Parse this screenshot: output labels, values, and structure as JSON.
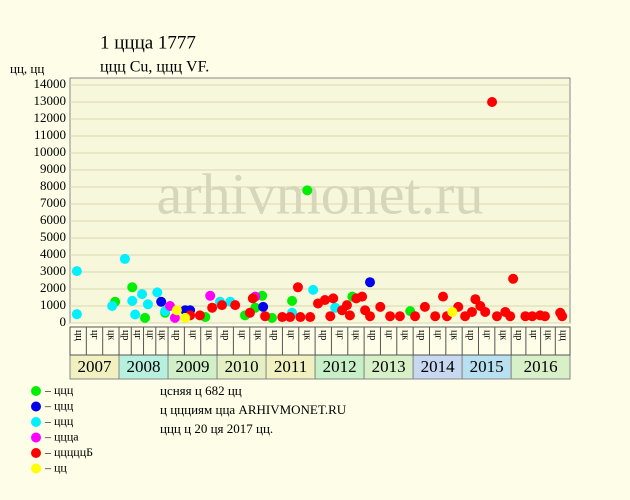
{
  "chart_data": {
    "type": "scatter",
    "title": "1 цццa 1777",
    "subtitle": "ццц Cu, ццц VF.",
    "y_label": "цц, цц",
    "watermark": "arhivmonet.ru",
    "xlim": [
      2007,
      2017.2
    ],
    "ylim": [
      0,
      14000
    ],
    "yticks": [
      0,
      1000,
      2000,
      3000,
      4000,
      5000,
      6000,
      7000,
      8000,
      9000,
      10000,
      11000,
      12000,
      13000,
      14000
    ],
    "grid": true,
    "years": [
      "2007",
      "2008",
      "2009",
      "2010",
      "2011",
      "2012",
      "2013",
      "2014",
      "2015",
      "2016"
    ],
    "year_colors": [
      "#f0f0c0",
      "#b8f0e0",
      "#d0f0c8",
      "#e4f0c4",
      "#f0f0c0",
      "#c8f0c8",
      "#d8f0c8",
      "#c8d8f0",
      "#b8e0f0",
      "#d8f0c8"
    ],
    "period_labels": [
      [
        "цц",
        "цг",
        "цк"
      ],
      [
        "цр",
        "цг",
        "цг",
        "цк"
      ],
      [
        "цр",
        "цг",
        "цк"
      ],
      [
        "цр",
        "цг",
        "цк"
      ],
      [
        "цр",
        "цг",
        "цк"
      ],
      [
        "цр",
        "цг",
        "цк"
      ],
      [
        "цр",
        "цг",
        "цк"
      ],
      [
        "цр",
        "цг",
        "цк"
      ],
      [
        "цр",
        "цг",
        "цк"
      ],
      [
        "цр",
        "цг",
        "цк",
        "цц"
      ]
    ],
    "series": [
      {
        "name": "– ццц",
        "color": "#00ee00",
        "x": [
          2007.92,
          2008.27,
          2008.53,
          2008.94,
          2009.76,
          2010.57,
          2010.78,
          2010.92,
          2011.12,
          2011.53,
          2011.84,
          2012.76,
          2013.94
        ],
        "values": [
          1250,
          2100,
          300,
          600,
          350,
          450,
          900,
          1600,
          300,
          1300,
          7800,
          1550,
          700
        ]
      },
      {
        "name": "– ццц",
        "color": "#0000ee",
        "x": [
          2008.86,
          2009.35,
          2009.45,
          2010.94,
          2013.12
        ],
        "values": [
          1250,
          750,
          750,
          950,
          2400
        ]
      },
      {
        "name": "– ццц",
        "color": "#00f0ff",
        "x": [
          2007.14,
          2007.14,
          2007.86,
          2008.12,
          2008.27,
          2008.33,
          2008.47,
          2008.59,
          2008.78,
          2008.94,
          2010.06,
          2010.27,
          2011.96,
          2011.53,
          2012.41
        ],
        "values": [
          3050,
          520,
          1000,
          3770,
          1300,
          500,
          1700,
          1100,
          1800,
          700,
          1250,
          1250,
          1950,
          600,
          900
        ]
      },
      {
        "name": "– цццa",
        "color": "#ff00ff",
        "x": [
          2009.04,
          2009.14,
          2009.86,
          2010.78
        ],
        "values": [
          1000,
          300,
          1600,
          1550
        ]
      },
      {
        "name": "– цццццБ",
        "color": "#ff0000",
        "x": [
          2009.45,
          2009.65,
          2009.9,
          2010.1,
          2010.37,
          2010.67,
          2010.73,
          2010.98,
          2011.33,
          2011.49,
          2011.65,
          2011.7,
          2011.9,
          2012.06,
          2012.2,
          2012.37,
          2012.31,
          2012.55,
          2012.65,
          2012.71,
          2012.84,
          2012.96,
          2013.02,
          2013.12,
          2013.33,
          2013.53,
          2013.73,
          2014.04,
          2014.24,
          2014.45,
          2014.61,
          2014.69,
          2014.92,
          2015.06,
          2015.2,
          2015.27,
          2015.37,
          2015.47,
          2015.61,
          2015.71,
          2015.88,
          2015.98,
          2016.04,
          2016.29,
          2016.43,
          2016.59,
          2016.69,
          2017.0,
          2017.04
        ],
        "values": [
          450,
          450,
          900,
          1050,
          1050,
          600,
          1450,
          400,
          350,
          350,
          2100,
          350,
          350,
          1150,
          1350,
          1450,
          400,
          750,
          1050,
          450,
          1450,
          1550,
          750,
          400,
          950,
          400,
          400,
          400,
          950,
          400,
          1550,
          400,
          950,
          400,
          650,
          1400,
          1000,
          650,
          13000,
          400,
          650,
          400,
          2600,
          400,
          400,
          450,
          400,
          600,
          400
        ]
      },
      {
        "name": "– цц",
        "color": "#ffff00",
        "x": [
          2009.18,
          2009.35,
          2014.8
        ],
        "values": [
          750,
          300,
          650
        ]
      }
    ],
    "notes": [
      "цcняя ц 682 цц",
      "ц ццциям цца ARHIVMONET.RU",
      "ццц ц 20 ця 2017 цц."
    ]
  }
}
